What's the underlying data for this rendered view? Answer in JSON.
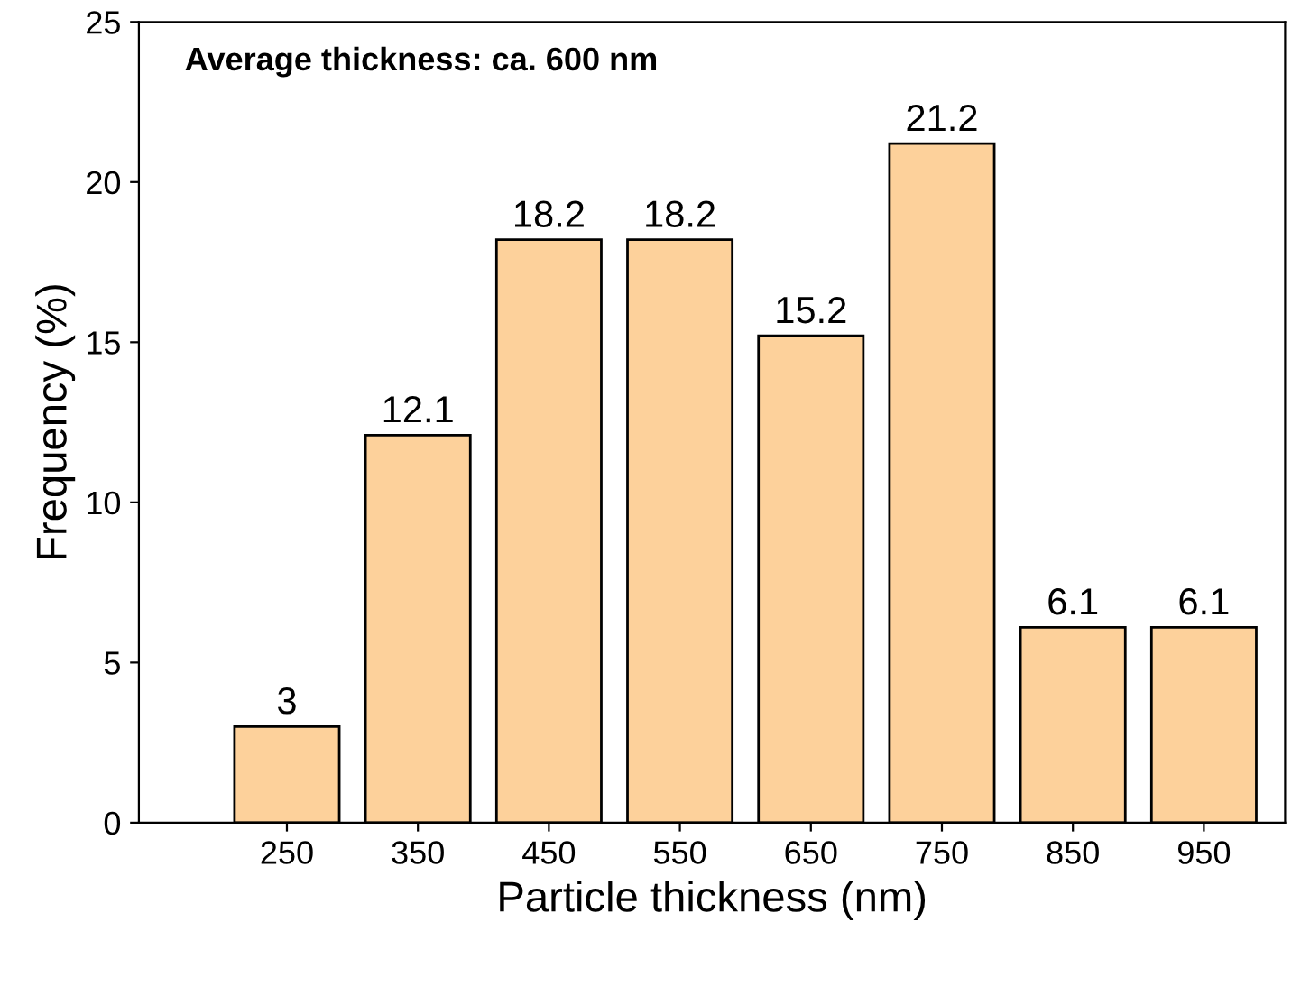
{
  "chart_data": {
    "type": "bar",
    "xlabel": "Particle thickness (nm)",
    "ylabel": "Frequency (%)",
    "annotations": [
      "Average thickness: ca. 600 nm"
    ],
    "categories": [
      "250",
      "350",
      "450",
      "550",
      "650",
      "750",
      "850",
      "950"
    ],
    "values": [
      3,
      12.1,
      18.2,
      18.2,
      15.2,
      21.2,
      6.1,
      6.1
    ],
    "color": "#fdd19b",
    "ylim": [
      0,
      25
    ],
    "yticks": [
      0,
      5,
      10,
      15,
      20,
      25
    ],
    "data_labels": true,
    "grid": false,
    "legend": false
  }
}
